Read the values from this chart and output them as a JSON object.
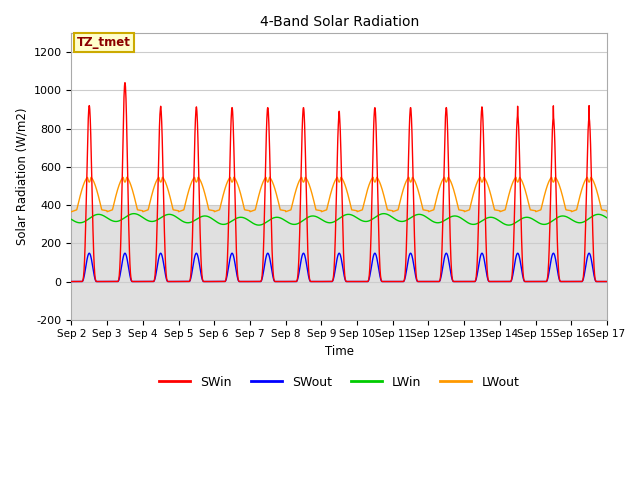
{
  "title": "4-Band Solar Radiation",
  "ylabel": "Solar Radiation (W/m2)",
  "xlabel": "Time",
  "ylim": [
    -200,
    1300
  ],
  "y_ticks": [
    -200,
    0,
    200,
    400,
    600,
    800,
    1000,
    1200
  ],
  "x_tick_labels": [
    "Sep 2",
    "Sep 3",
    "Sep 4",
    "Sep 5",
    "Sep 6",
    "Sep 7",
    "Sep 8",
    "Sep 9",
    "Sep 10",
    "Sep 11",
    "Sep 12",
    "Sep 13",
    "Sep 14",
    "Sep 15",
    "Sep 16",
    "Sep 17"
  ],
  "colors": {
    "SWin": "#ff0000",
    "SWout": "#0000ff",
    "LWin": "#00cc00",
    "LWout": "#ff9900"
  },
  "annotation_text": "TZ_tmet",
  "annotation_bg": "#ffffcc",
  "annotation_border": "#ccaa00",
  "plot_bg_top": "#ffffff",
  "plot_bg_bottom": "#d8d8d8",
  "figure_bg": "#ffffff",
  "grid_color": "#d0d0d0",
  "legend_entries": [
    "SWin",
    "SWout",
    "LWin",
    "LWout"
  ]
}
